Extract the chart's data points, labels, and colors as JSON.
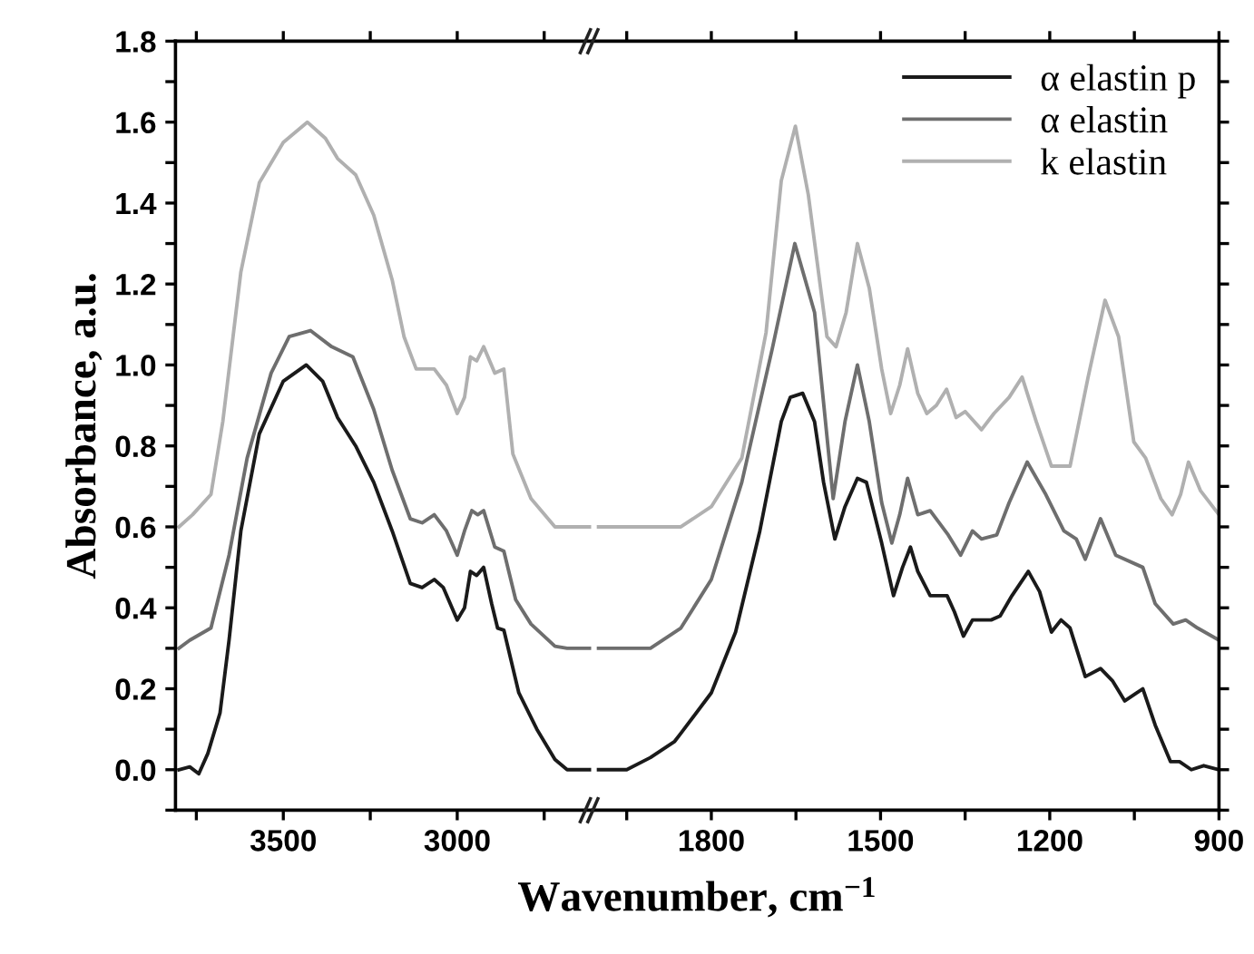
{
  "chart_data": [
    {
      "type": "line",
      "ylabel": "Absorbance, a.u.",
      "xlabel": "Wavenumber, cm$^{−1}$",
      "xlim": [
        3810,
        2610
      ],
      "ylim": [
        -0.1,
        1.8
      ],
      "xticks": [
        {
          "value": 3750,
          "label": null
        },
        3500,
        {
          "value": 3250,
          "label": null
        },
        3000,
        {
          "value": 2750,
          "label": null
        }
      ],
      "yticks": [
        {
          "value": -0.1,
          "label": null
        },
        {
          "value": 0,
          "label": "0.0"
        },
        {
          "value": 0.1,
          "label": null
        },
        0.2,
        {
          "value": 0.3,
          "label": null
        },
        0.4,
        {
          "value": 0.5,
          "label": null
        },
        0.6,
        {
          "value": 0.7,
          "label": null
        },
        0.8,
        {
          "value": 0.9,
          "label": null
        },
        {
          "value": 1,
          "label": "1.0"
        },
        {
          "value": 1.1,
          "label": null
        },
        1.2,
        {
          "value": 1.3,
          "label": null
        },
        1.4,
        {
          "value": 1.5,
          "label": null
        },
        1.6,
        {
          "value": 1.7,
          "label": null
        },
        1.8
      ],
      "grid": false,
      "legend": false,
      "series": [
        {
          "color": "#1a1a1a",
          "x": [
            3800,
            3769,
            3743,
            3717,
            3682,
            3656,
            3622,
            3569,
            3500,
            3434,
            3387,
            3344,
            3292,
            3240,
            3187,
            3135,
            3101,
            3066,
            3040,
            3000,
            2979,
            2962,
            2944,
            2924,
            2901,
            2884,
            2866,
            2823,
            2771,
            2719,
            2684,
            2620
          ],
          "values": [
            0.0,
            0.007,
            -0.01,
            0.04,
            0.14,
            0.32,
            0.59,
            0.83,
            0.96,
            1.0,
            0.96,
            0.87,
            0.8,
            0.71,
            0.59,
            0.46,
            0.45,
            0.47,
            0.45,
            0.37,
            0.4,
            0.49,
            0.48,
            0.5,
            0.41,
            0.35,
            0.345,
            0.19,
            0.1,
            0.025,
            0.0,
            0.0
          ]
        },
        {
          "color": "#6e6e6e",
          "x": [
            3800,
            3769,
            3708,
            3656,
            3604,
            3535,
            3483,
            3422,
            3361,
            3300,
            3240,
            3187,
            3135,
            3101,
            3066,
            3031,
            3000,
            2979,
            2958,
            2941,
            2924,
            2892,
            2866,
            2832,
            2788,
            2719,
            2684,
            2620
          ],
          "values": [
            0.3,
            0.32,
            0.35,
            0.53,
            0.77,
            0.98,
            1.07,
            1.085,
            1.045,
            1.02,
            0.89,
            0.74,
            0.62,
            0.61,
            0.63,
            0.59,
            0.53,
            0.59,
            0.64,
            0.63,
            0.64,
            0.55,
            0.54,
            0.42,
            0.36,
            0.305,
            0.3,
            0.3
          ]
        },
        {
          "color": "#b0b0b0",
          "x": [
            3800,
            3761,
            3708,
            3674,
            3622,
            3569,
            3500,
            3431,
            3379,
            3344,
            3292,
            3240,
            3187,
            3153,
            3118,
            3066,
            3031,
            3000,
            2979,
            2962,
            2944,
            2924,
            2892,
            2866,
            2840,
            2788,
            2719,
            2620
          ],
          "values": [
            0.6,
            0.63,
            0.68,
            0.86,
            1.23,
            1.45,
            1.55,
            1.6,
            1.56,
            1.51,
            1.47,
            1.37,
            1.21,
            1.07,
            0.99,
            0.99,
            0.95,
            0.88,
            0.92,
            1.02,
            1.01,
            1.045,
            0.98,
            0.99,
            0.78,
            0.67,
            0.6,
            0.6
          ]
        }
      ]
    },
    {
      "type": "line",
      "xlim": [
        2010,
        900
      ],
      "ylim": [
        -0.1,
        1.8
      ],
      "xticks": [
        {
          "value": 1950,
          "label": null
        },
        1800,
        {
          "value": 1650,
          "label": null
        },
        1500,
        {
          "value": 1350,
          "label": null
        },
        1200,
        {
          "value": 1050,
          "label": null
        },
        900
      ],
      "yticks": [
        {
          "value": -0.1,
          "label": null
        },
        {
          "value": 0.0,
          "label": null
        },
        {
          "value": 0.1,
          "label": null
        },
        {
          "value": 0.2,
          "label": null
        },
        {
          "value": 0.3,
          "label": null
        },
        {
          "value": 0.4,
          "label": null
        },
        {
          "value": 0.5,
          "label": null
        },
        {
          "value": 0.6,
          "label": null
        },
        {
          "value": 0.7,
          "label": null
        },
        {
          "value": 0.8,
          "label": null
        },
        {
          "value": 0.9,
          "label": null
        },
        {
          "value": 1.0,
          "label": null
        },
        {
          "value": 1.1,
          "label": null
        },
        {
          "value": 1.2,
          "label": null
        },
        {
          "value": 1.3,
          "label": null
        },
        {
          "value": 1.4,
          "label": null
        },
        {
          "value": 1.5,
          "label": null
        },
        {
          "value": 1.6,
          "label": null
        },
        {
          "value": 1.7,
          "label": null
        },
        {
          "value": 1.8,
          "label": null
        }
      ],
      "tick_labels": "x",
      "grid": false,
      "legend": "top right",
      "series": [
        {
          "name": "α elastin p",
          "color": "#1a1a1a",
          "x": [
            2000,
            1950,
            1908,
            1865,
            1854,
            1800,
            1757,
            1714,
            1676,
            1660,
            1638,
            1617,
            1601,
            1581,
            1563,
            1541,
            1525,
            1498,
            1477,
            1461,
            1447,
            1434,
            1412,
            1382,
            1369,
            1353,
            1337,
            1304,
            1288,
            1267,
            1238,
            1218,
            1197,
            1180,
            1164,
            1137,
            1110,
            1089,
            1067,
            1035,
            1013,
            986,
            970,
            949,
            927,
            900
          ],
          "values": [
            0.0,
            0.0,
            0.03,
            0.07,
            0.09,
            0.19,
            0.34,
            0.59,
            0.86,
            0.92,
            0.93,
            0.86,
            0.71,
            0.57,
            0.65,
            0.72,
            0.71,
            0.56,
            0.43,
            0.5,
            0.55,
            0.49,
            0.43,
            0.43,
            0.39,
            0.33,
            0.37,
            0.37,
            0.38,
            0.43,
            0.49,
            0.44,
            0.34,
            0.37,
            0.35,
            0.23,
            0.25,
            0.22,
            0.17,
            0.2,
            0.11,
            0.02,
            0.02,
            0.0,
            0.01,
            0.0
          ]
        },
        {
          "name": "α elastin",
          "color": "#6e6e6e",
          "x": [
            2000,
            1983,
            1908,
            1854,
            1800,
            1746,
            1692,
            1652,
            1617,
            1584,
            1563,
            1541,
            1520,
            1498,
            1480,
            1466,
            1452,
            1434,
            1412,
            1380,
            1358,
            1337,
            1321,
            1294,
            1272,
            1240,
            1207,
            1175,
            1153,
            1137,
            1110,
            1083,
            1035,
            1013,
            981,
            959,
            938,
            900
          ],
          "values": [
            0.3,
            0.3,
            0.3,
            0.35,
            0.47,
            0.71,
            1.04,
            1.3,
            1.13,
            0.67,
            0.86,
            1.0,
            0.86,
            0.66,
            0.56,
            0.63,
            0.72,
            0.63,
            0.64,
            0.58,
            0.53,
            0.59,
            0.57,
            0.58,
            0.66,
            0.76,
            0.68,
            0.59,
            0.57,
            0.52,
            0.62,
            0.53,
            0.5,
            0.41,
            0.36,
            0.37,
            0.35,
            0.32
          ]
        },
        {
          "name": "k elastin",
          "color": "#b0b0b0",
          "x": [
            2000,
            1854,
            1800,
            1746,
            1703,
            1676,
            1651,
            1628,
            1595,
            1579,
            1561,
            1541,
            1520,
            1498,
            1482,
            1466,
            1452,
            1434,
            1418,
            1401,
            1383,
            1366,
            1350,
            1321,
            1299,
            1272,
            1249,
            1224,
            1197,
            1164,
            1132,
            1102,
            1078,
            1051,
            1030,
            1003,
            983,
            968,
            954,
            933,
            900
          ],
          "values": [
            0.6,
            0.6,
            0.65,
            0.77,
            1.08,
            1.455,
            1.59,
            1.42,
            1.07,
            1.045,
            1.13,
            1.3,
            1.19,
            0.99,
            0.88,
            0.95,
            1.04,
            0.93,
            0.88,
            0.9,
            0.94,
            0.87,
            0.885,
            0.84,
            0.88,
            0.92,
            0.97,
            0.86,
            0.75,
            0.75,
            0.97,
            1.16,
            1.07,
            0.81,
            0.77,
            0.67,
            0.63,
            0.68,
            0.76,
            0.69,
            0.63
          ]
        }
      ]
    }
  ]
}
